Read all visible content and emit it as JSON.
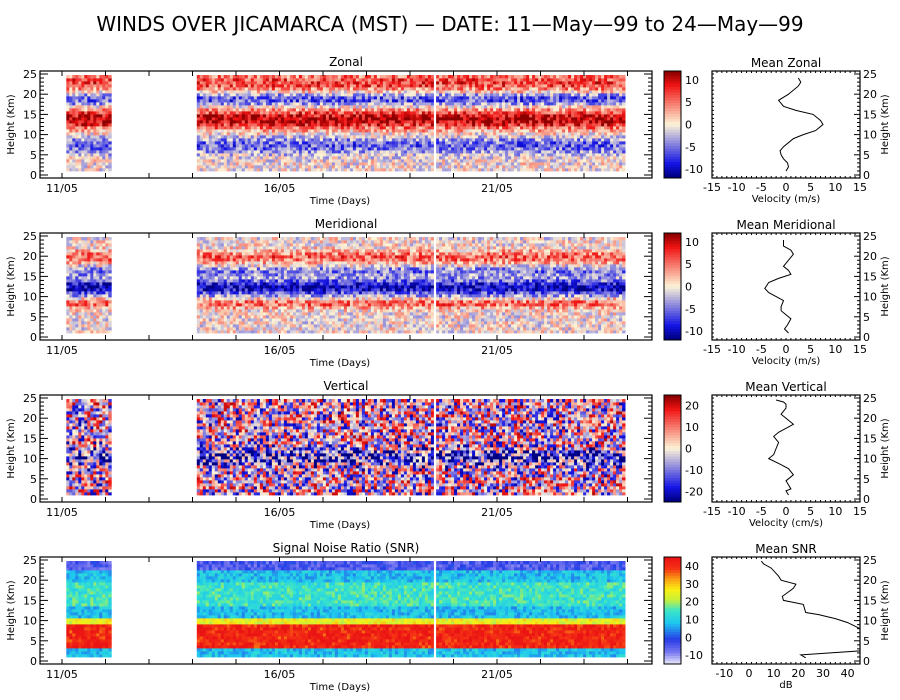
{
  "title": "WINDS OVER JICAMARCA (MST) — DATE: 11—May—99 to 24—May—99",
  "chart_data": [
    {
      "type": "heatmap",
      "title": "Zonal",
      "xlabel": "Time (Days)",
      "ylabel": "Height (Km)",
      "xticks": [
        "11/05",
        "16/05",
        "21/05"
      ],
      "yticks": [
        "0",
        "5",
        "10",
        "15",
        "20",
        "25"
      ],
      "ylim": [
        0,
        25
      ],
      "colormap": "blue-white-red",
      "colorbar": {
        "range": [
          -12,
          12
        ],
        "ticks": [
          "10",
          "5",
          "0",
          "-5",
          "-10"
        ]
      },
      "data_coverage_days": [
        [
          11.1,
          12.1
        ],
        [
          14.1,
          19.5
        ],
        [
          19.6,
          24.3
        ]
      ],
      "features": [
        {
          "height_km": [
            11,
            16
          ],
          "sign": "positive",
          "strength": 0.9
        },
        {
          "height_km": [
            17,
            20
          ],
          "sign": "negative",
          "strength": 0.6
        },
        {
          "height_km": [
            5,
            9
          ],
          "sign": "negative",
          "strength": 0.5
        },
        {
          "height_km": [
            20,
            25
          ],
          "sign": "positive",
          "strength": 0.6
        }
      ]
    },
    {
      "type": "line",
      "title": "Mean Zonal",
      "xlabel": "Velocity (m/s)",
      "ylabel": "Height (Km)",
      "xlim": [
        -15,
        15
      ],
      "ylim": [
        0,
        25
      ],
      "xticks": [
        "-15",
        "-10",
        "-5",
        "0",
        "5",
        "10",
        "15"
      ],
      "yticks": [
        "0",
        "5",
        "10",
        "15",
        "20",
        "25"
      ],
      "x": [
        0,
        0.5,
        0.3,
        -0.5,
        -1,
        -1.2,
        -0.5,
        0.5,
        1.5,
        3.5,
        6,
        7.5,
        7,
        5.5,
        2,
        -0.5,
        -1.5,
        0.5,
        2.5,
        3,
        2.5
      ],
      "y": [
        1,
        2,
        3,
        4,
        5,
        6,
        7,
        8,
        9,
        10,
        11,
        12.5,
        13.5,
        15,
        16,
        17,
        18.5,
        20,
        22,
        23,
        24
      ]
    },
    {
      "type": "heatmap",
      "title": "Meridional",
      "xlabel": "Time (Days)",
      "ylabel": "Height (Km)",
      "xticks": [
        "11/05",
        "16/05",
        "21/05"
      ],
      "yticks": [
        "0",
        "5",
        "10",
        "15",
        "20",
        "25"
      ],
      "ylim": [
        0,
        25
      ],
      "colormap": "blue-white-red",
      "colorbar": {
        "range": [
          -12,
          12
        ],
        "ticks": [
          "10",
          "5",
          "0",
          "-5",
          "-10"
        ]
      },
      "data_coverage_days": [
        [
          11.1,
          12.1
        ],
        [
          14.1,
          19.5
        ],
        [
          19.6,
          24.3
        ]
      ],
      "features": [
        {
          "height_km": [
            10,
            14
          ],
          "sign": "negative",
          "strength": 0.85
        },
        {
          "height_km": [
            7,
            9
          ],
          "sign": "positive",
          "strength": 0.5
        },
        {
          "height_km": [
            18,
            21
          ],
          "sign": "positive",
          "strength": 0.5
        },
        {
          "height_km": [
            15,
            17
          ],
          "sign": "negative",
          "strength": 0.4
        }
      ]
    },
    {
      "type": "line",
      "title": "Mean Meridional",
      "xlabel": "Velocity (m/s)",
      "ylabel": "Height (Km)",
      "xlim": [
        -15,
        15
      ],
      "ylim": [
        0,
        25
      ],
      "xticks": [
        "-15",
        "-10",
        "-5",
        "0",
        "5",
        "10",
        "15"
      ],
      "yticks": [
        "0",
        "5",
        "10",
        "15",
        "20",
        "25"
      ],
      "x": [
        0.5,
        -0.3,
        0.3,
        1,
        0,
        -1,
        -1,
        -0.5,
        -2,
        -3.5,
        -4.3,
        -3.5,
        -1.5,
        1,
        0.5,
        -0.5,
        0.5,
        1.5,
        1,
        -0.5,
        -0.5
      ],
      "y": [
        1,
        2,
        3,
        4.5,
        5.5,
        6.5,
        7.5,
        9,
        10,
        11,
        12,
        13.5,
        14.5,
        15.5,
        16.5,
        17.5,
        19,
        20.5,
        21.5,
        22.5,
        24
      ]
    },
    {
      "type": "heatmap",
      "title": "Vertical",
      "xlabel": "Time (Days)",
      "ylabel": "Height (Km)",
      "xticks": [
        "11/05",
        "16/05",
        "21/05"
      ],
      "yticks": [
        "0",
        "5",
        "10",
        "15",
        "20",
        "25"
      ],
      "ylim": [
        0,
        25
      ],
      "colormap": "blue-white-red",
      "colorbar": {
        "range": [
          -25,
          25
        ],
        "ticks": [
          "20",
          "10",
          "0",
          "-10",
          "-20"
        ]
      },
      "data_coverage_days": [
        [
          11.1,
          12.1
        ],
        [
          14.1,
          19.5
        ],
        [
          19.6,
          24.3
        ]
      ],
      "features": [
        {
          "height_km": [
            8,
            12
          ],
          "sign": "negative",
          "strength": 0.6
        },
        {
          "height_km": [
            0,
            25
          ],
          "sign": "noise",
          "strength": 0.5
        }
      ]
    },
    {
      "type": "line",
      "title": "Mean Vertical",
      "xlabel": "Velocity (cm/s)",
      "ylabel": "Height (Km)",
      "xlim": [
        -15,
        15
      ],
      "ylim": [
        0,
        25
      ],
      "xticks": [
        "-15",
        "-10",
        "-5",
        "0",
        "5",
        "10",
        "15"
      ],
      "yticks": [
        "0",
        "5",
        "10",
        "15",
        "20",
        "25"
      ],
      "x": [
        0.5,
        0,
        1,
        0.5,
        0,
        1.5,
        0.5,
        -1,
        -3.5,
        -2.5,
        -2,
        -1.5,
        -2.5,
        -1.5,
        0,
        1.5,
        0,
        -1,
        0,
        0,
        -0.5,
        -2
      ],
      "y": [
        1,
        2,
        2.5,
        3.5,
        4.5,
        6,
        7.5,
        8.5,
        10,
        11,
        12.5,
        14,
        15.5,
        16.5,
        17.5,
        18.5,
        20,
        21,
        22.5,
        23.5,
        24,
        24.5
      ]
    },
    {
      "type": "heatmap",
      "title": "Signal Noise Ratio (SNR)",
      "xlabel": "Time (Days)",
      "ylabel": "Height (Km)",
      "xticks": [
        "11/05",
        "16/05",
        "21/05"
      ],
      "yticks": [
        "0",
        "5",
        "10",
        "15",
        "20",
        "25"
      ],
      "ylim": [
        0,
        25
      ],
      "colormap": "jet",
      "colorbar": {
        "range": [
          -15,
          45
        ],
        "ticks": [
          "40",
          "30",
          "20",
          "10",
          "0",
          "-10"
        ]
      },
      "data_coverage_days": [
        [
          11.1,
          12.1
        ],
        [
          14.1,
          19.5
        ],
        [
          19.6,
          24.3
        ]
      ],
      "features": [
        {
          "height_km": [
            3,
            8
          ],
          "value_db": 42
        },
        {
          "height_km": [
            8,
            10
          ],
          "value_db": 25
        },
        {
          "height_km": [
            1,
            3
          ],
          "value_db": 5
        },
        {
          "height_km": [
            10,
            20
          ],
          "value_db": 10
        },
        {
          "height_km": [
            20,
            25
          ],
          "value_db": -5
        }
      ]
    },
    {
      "type": "line",
      "title": "Mean SNR",
      "xlabel": "dB",
      "ylabel": "Height (Km)",
      "xlim": [
        -15,
        45
      ],
      "ylim": [
        0,
        25
      ],
      "xticks": [
        "-10",
        "0",
        "10",
        "20",
        "30",
        "40"
      ],
      "yticks": [
        "0",
        "5",
        "10",
        "15",
        "20",
        "25"
      ],
      "x": [
        23,
        21,
        45,
        45,
        45,
        40,
        35,
        28,
        23,
        22,
        18,
        14,
        13.5,
        18,
        19,
        13,
        12,
        9,
        6,
        5
      ],
      "y": [
        0.8,
        1.5,
        2.5,
        5,
        8,
        9.5,
        10.5,
        11.5,
        12,
        14,
        14.5,
        15,
        16,
        18,
        19,
        20,
        21,
        23,
        24,
        24.7
      ]
    }
  ]
}
